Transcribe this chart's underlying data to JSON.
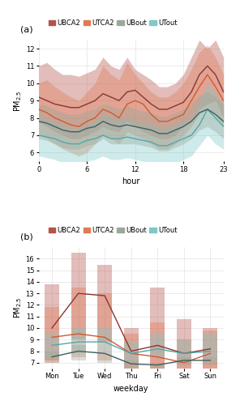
{
  "panel_a": {
    "hours": [
      0,
      1,
      2,
      3,
      4,
      5,
      6,
      7,
      8,
      9,
      10,
      11,
      12,
      13,
      14,
      15,
      16,
      17,
      18,
      19,
      20,
      21,
      22,
      23
    ],
    "UBCA2_mean": [
      9.2,
      9.0,
      8.8,
      8.7,
      8.6,
      8.6,
      8.8,
      9.0,
      9.4,
      9.2,
      9.0,
      9.5,
      9.6,
      9.2,
      8.8,
      8.5,
      8.5,
      8.7,
      8.9,
      9.5,
      10.5,
      11.0,
      10.5,
      9.5
    ],
    "UBCA2_upper": [
      11.0,
      11.2,
      10.8,
      10.5,
      10.5,
      10.4,
      10.6,
      10.8,
      11.5,
      11.0,
      10.8,
      11.5,
      10.8,
      10.5,
      10.2,
      9.8,
      9.8,
      10.0,
      10.5,
      11.5,
      12.5,
      12.0,
      12.5,
      11.5
    ],
    "UBCA2_lower": [
      7.8,
      7.5,
      7.2,
      7.0,
      6.8,
      6.8,
      7.0,
      7.2,
      7.5,
      7.3,
      7.2,
      7.8,
      7.5,
      7.2,
      7.0,
      6.8,
      6.8,
      7.0,
      7.5,
      7.8,
      8.5,
      8.8,
      9.0,
      8.0
    ],
    "UTCA2_mean": [
      8.5,
      8.3,
      8.0,
      7.8,
      7.6,
      7.5,
      7.8,
      8.0,
      8.5,
      8.3,
      8.0,
      8.8,
      9.0,
      8.8,
      8.2,
      7.8,
      7.8,
      8.0,
      8.2,
      9.0,
      9.8,
      10.5,
      9.8,
      9.0
    ],
    "UTCA2_upper": [
      10.0,
      10.2,
      9.8,
      9.5,
      9.2,
      9.0,
      9.5,
      10.0,
      11.0,
      10.5,
      10.2,
      11.2,
      10.5,
      10.0,
      9.5,
      9.2,
      9.2,
      9.5,
      10.0,
      10.8,
      11.8,
      12.2,
      11.5,
      10.5
    ],
    "UTCA2_lower": [
      7.0,
      6.8,
      6.5,
      6.2,
      6.0,
      5.8,
      6.0,
      6.5,
      7.0,
      6.8,
      6.5,
      7.2,
      7.0,
      6.8,
      6.5,
      6.2,
      6.2,
      6.5,
      7.0,
      7.5,
      8.2,
      8.5,
      8.2,
      7.5
    ],
    "UBout_mean": [
      7.8,
      7.7,
      7.5,
      7.3,
      7.2,
      7.2,
      7.4,
      7.5,
      7.8,
      7.6,
      7.5,
      7.6,
      7.5,
      7.4,
      7.3,
      7.1,
      7.1,
      7.3,
      7.5,
      7.8,
      8.3,
      8.5,
      8.2,
      7.8
    ],
    "UBout_upper": [
      8.8,
      8.7,
      8.5,
      8.3,
      8.2,
      8.2,
      8.4,
      8.5,
      8.8,
      8.7,
      8.5,
      8.7,
      8.5,
      8.4,
      8.3,
      8.1,
      8.1,
      8.3,
      8.5,
      8.8,
      9.3,
      9.5,
      9.2,
      8.8
    ],
    "UBout_lower": [
      6.8,
      6.7,
      6.5,
      6.3,
      6.2,
      6.2,
      6.4,
      6.5,
      6.8,
      6.5,
      6.5,
      6.5,
      6.5,
      6.4,
      6.3,
      6.1,
      6.1,
      6.3,
      6.5,
      6.8,
      7.3,
      7.5,
      7.2,
      6.8
    ],
    "UTout_mean": [
      7.0,
      6.9,
      6.8,
      6.6,
      6.5,
      6.5,
      6.7,
      6.8,
      7.0,
      6.8,
      6.8,
      6.9,
      6.8,
      6.7,
      6.6,
      6.4,
      6.4,
      6.6,
      6.8,
      7.0,
      7.6,
      8.5,
      8.0,
      7.5
    ],
    "UTout_upper": [
      8.0,
      7.9,
      7.8,
      7.6,
      7.4,
      7.4,
      7.6,
      7.8,
      8.2,
      8.0,
      7.9,
      8.0,
      7.8,
      7.7,
      7.6,
      7.4,
      7.4,
      7.6,
      7.8,
      8.0,
      9.0,
      10.0,
      9.5,
      8.8
    ],
    "UTout_lower": [
      5.8,
      5.7,
      5.6,
      5.4,
      5.2,
      5.2,
      5.5,
      5.6,
      5.8,
      5.6,
      5.6,
      5.7,
      5.6,
      5.5,
      5.4,
      5.2,
      5.2,
      5.4,
      5.6,
      5.8,
      6.4,
      7.0,
      6.5,
      6.2
    ],
    "ylim": [
      5.5,
      12.5
    ],
    "yticks": [
      6,
      7,
      8,
      9,
      10,
      11,
      12
    ],
    "xticks": [
      0,
      6,
      12,
      18,
      23
    ],
    "xlabel": "hour",
    "ylabel": "PM2.5"
  },
  "panel_b": {
    "days": [
      "Mon",
      "Tue",
      "Wed",
      "Thu",
      "Fri",
      "Sat",
      "Sun"
    ],
    "day_indices": [
      0,
      1,
      2,
      3,
      4,
      5,
      6
    ],
    "UBCA2_mean": [
      10.0,
      13.0,
      12.8,
      8.0,
      8.5,
      7.8,
      8.2
    ],
    "UBCA2_upper": [
      13.8,
      16.5,
      15.5,
      10.0,
      13.5,
      10.8,
      10.0
    ],
    "UBCA2_lower": [
      7.2,
      9.0,
      8.8,
      5.8,
      6.2,
      5.5,
      6.5
    ],
    "UTCA2_mean": [
      9.2,
      9.5,
      9.2,
      7.8,
      7.5,
      7.0,
      7.8
    ],
    "UTCA2_upper": [
      11.8,
      13.5,
      13.0,
      9.5,
      10.5,
      9.0,
      9.8
    ],
    "UTCA2_lower": [
      7.0,
      7.5,
      7.2,
      6.0,
      5.8,
      5.5,
      6.0
    ],
    "UTout_mean": [
      8.5,
      8.8,
      8.8,
      7.8,
      8.2,
      7.8,
      8.0
    ],
    "UTout_upper": [
      9.5,
      10.0,
      10.0,
      8.8,
      9.5,
      9.0,
      9.5
    ],
    "UTout_lower": [
      7.5,
      7.8,
      7.8,
      7.0,
      7.5,
      7.0,
      7.2
    ],
    "UBout_mean": [
      7.5,
      8.0,
      7.8,
      6.9,
      6.8,
      7.2,
      7.2
    ],
    "UBout_upper": [
      8.0,
      8.5,
      7.8,
      7.2,
      7.0,
      7.5,
      7.5
    ],
    "UBout_lower": [
      7.0,
      7.2,
      7.0,
      6.5,
      6.5,
      6.8,
      6.8
    ],
    "ylim": [
      6.5,
      17.0
    ],
    "yticks": [
      7,
      8,
      9,
      10,
      11,
      12,
      13,
      14,
      15,
      16
    ],
    "xlabel": "weekday",
    "ylabel": "PM2.5"
  },
  "colors": {
    "UBCA2": "#b5534a",
    "UTCA2": "#e07a55",
    "UBout": "#9aa89a",
    "UTout": "#7ec8c8"
  },
  "line_colors": {
    "UBCA2": "#8b3530",
    "UTCA2": "#d05a30",
    "UBout": "#3d6060",
    "UTout": "#50a8a8"
  },
  "alpha_fill": 0.38,
  "background": "#ffffff",
  "grid_color": "#e8e8e8",
  "line_width": 1.0,
  "font_size": 7
}
